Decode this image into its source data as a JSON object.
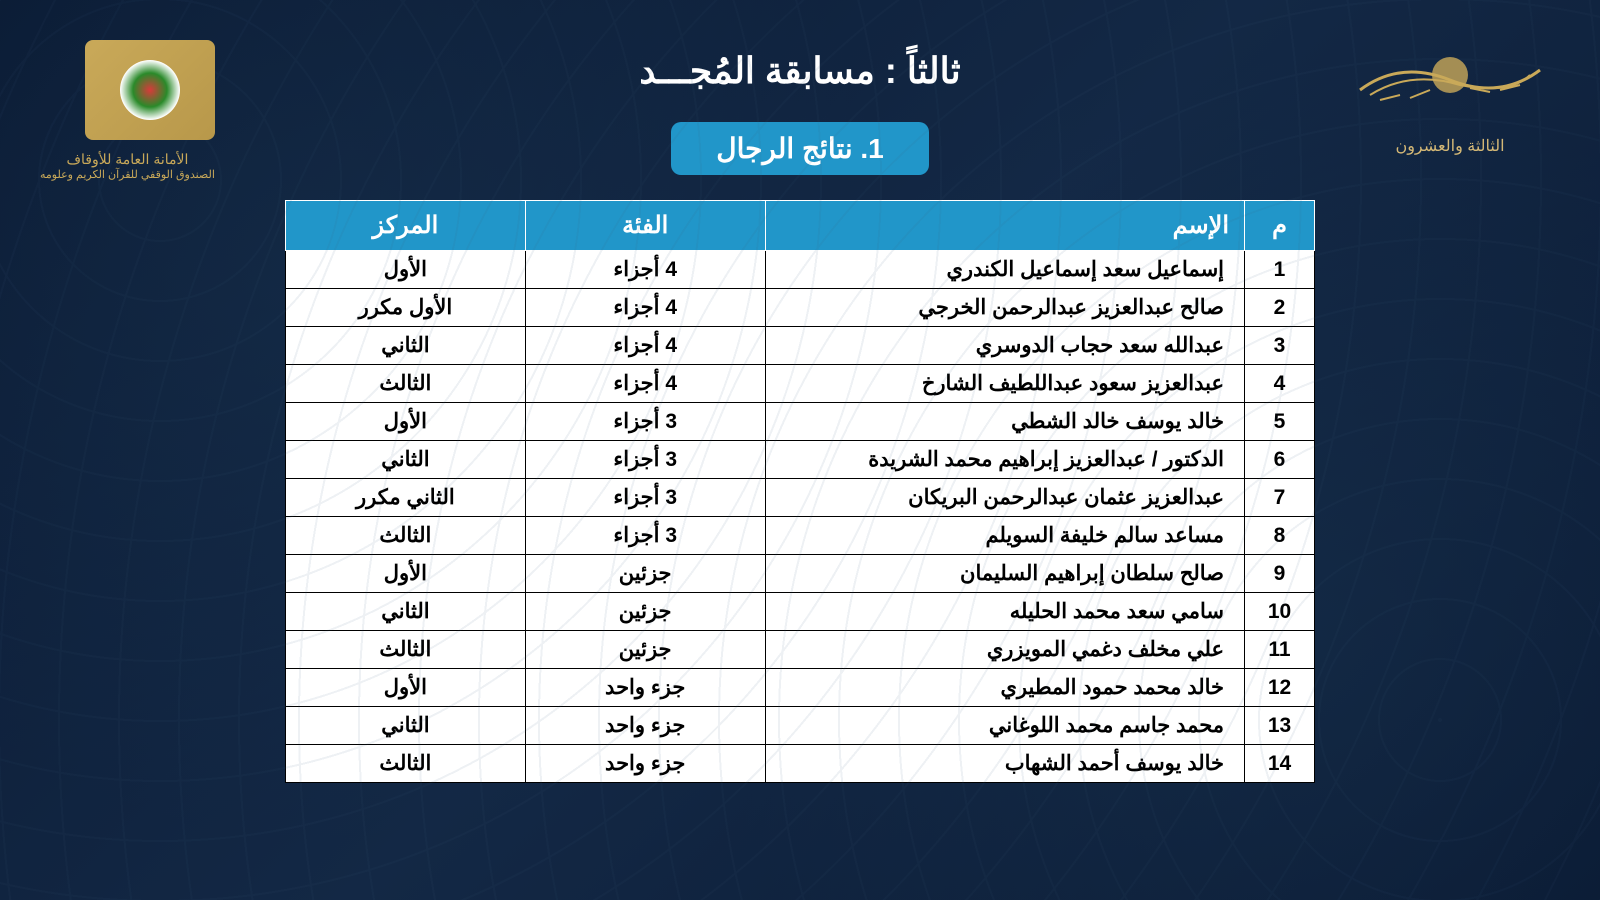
{
  "header": {
    "title": "ثالثاً : مسابقة المُجـــد",
    "subtitle": "1. نتائج الرجال"
  },
  "logos": {
    "right_subtext": "الثالثة والعشرون",
    "left_line1": "الأمانة العامة للأوقاف",
    "left_line2": "الصندوق الوقفي للقرآن الكريم وعلومه"
  },
  "table": {
    "headers": {
      "num": "م",
      "name": "الإسم",
      "category": "الفئة",
      "rank": "المركز"
    },
    "rows": [
      {
        "num": "1",
        "name": "إسماعيل سعد إسماعيل الكندري",
        "category": "4 أجزاء",
        "rank": "الأول"
      },
      {
        "num": "2",
        "name": "صالح عبدالعزيز عبدالرحمن الخرجي",
        "category": "4 أجزاء",
        "rank": "الأول مكرر"
      },
      {
        "num": "3",
        "name": "عبدالله سعد حجاب الدوسري",
        "category": "4 أجزاء",
        "rank": "الثاني"
      },
      {
        "num": "4",
        "name": "عبدالعزيز سعود عبداللطيف الشارخ",
        "category": "4 أجزاء",
        "rank": "الثالث"
      },
      {
        "num": "5",
        "name": "خالد يوسف خالد الشطي",
        "category": "3 أجزاء",
        "rank": "الأول"
      },
      {
        "num": "6",
        "name": "الدكتور / عبدالعزيز إبراهيم محمد الشريدة",
        "category": "3 أجزاء",
        "rank": "الثاني"
      },
      {
        "num": "7",
        "name": "عبدالعزيز عثمان عبدالرحمن البريكان",
        "category": "3 أجزاء",
        "rank": "الثاني مكرر"
      },
      {
        "num": "8",
        "name": "مساعد سالم خليفة السويلم",
        "category": "3 أجزاء",
        "rank": "الثالث"
      },
      {
        "num": "9",
        "name": "صالح سلطان إبراهيم السليمان",
        "category": "جزئين",
        "rank": "الأول"
      },
      {
        "num": "10",
        "name": "سامي سعد محمد الحليله",
        "category": "جزئين",
        "rank": "الثاني"
      },
      {
        "num": "11",
        "name": "علي مخلف دغمي المويزري",
        "category": "جزئين",
        "rank": "الثالث"
      },
      {
        "num": "12",
        "name": "خالد محمد حمود المطيري",
        "category": "جزء واحد",
        "rank": "الأول"
      },
      {
        "num": "13",
        "name": "محمد جاسم محمد اللوغاني",
        "category": "جزء واحد",
        "rank": "الثاني"
      },
      {
        "num": "14",
        "name": "خالد يوسف أحمد الشهاب",
        "category": "جزء واحد",
        "rank": "الثالث"
      }
    ]
  },
  "colors": {
    "background": "#0d1f3c",
    "header_badge": "#2196c9",
    "gold": "#c9a959",
    "text_white": "#ffffff",
    "text_black": "#000000"
  }
}
